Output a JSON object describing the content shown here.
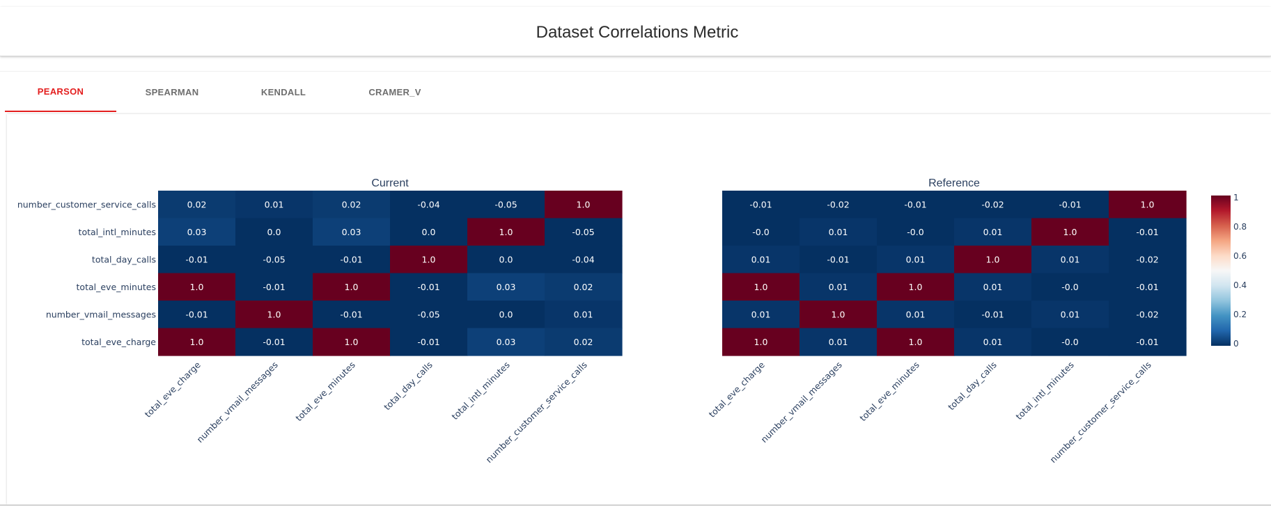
{
  "header": {
    "title": "Dataset Correlations Metric"
  },
  "tabs": [
    {
      "label": "PEARSON",
      "active": true
    },
    {
      "label": "SPEARMAN",
      "active": false
    },
    {
      "label": "KENDALL",
      "active": false
    },
    {
      "label": "CRAMER_V",
      "active": false
    }
  ],
  "chart_data": {
    "type": "heatmap",
    "x_labels": [
      "total_eve_charge",
      "number_vmail_messages",
      "total_eve_minutes",
      "total_day_calls",
      "total_intl_minutes",
      "number_customer_service_calls"
    ],
    "y_labels": [
      "number_customer_service_calls",
      "total_intl_minutes",
      "total_day_calls",
      "total_eve_minutes",
      "number_vmail_messages",
      "total_eve_charge"
    ],
    "colorscale": {
      "min": 0,
      "max": 1,
      "low_color": "#053061",
      "mid_color": "#f7f7f7",
      "high_color": "#67001f"
    },
    "colorbar_ticks": [
      "0",
      "0.2",
      "0.4",
      "0.6",
      "0.8",
      "1"
    ],
    "panels": [
      {
        "title": "Current",
        "values": [
          [
            0.02,
            0.01,
            0.02,
            -0.04,
            -0.05,
            1.0
          ],
          [
            0.03,
            0.0,
            0.03,
            0.0,
            1.0,
            -0.05
          ],
          [
            -0.01,
            -0.05,
            -0.01,
            1.0,
            0.0,
            -0.04
          ],
          [
            1.0,
            -0.01,
            1.0,
            -0.01,
            0.03,
            0.02
          ],
          [
            -0.01,
            1.0,
            -0.01,
            -0.05,
            0.0,
            0.01
          ],
          [
            1.0,
            -0.01,
            1.0,
            -0.01,
            0.03,
            0.02
          ]
        ],
        "text": [
          [
            "0.02",
            "0.01",
            "0.02",
            "-0.04",
            "-0.05",
            "1.0"
          ],
          [
            "0.03",
            "0.0",
            "0.03",
            "0.0",
            "1.0",
            "-0.05"
          ],
          [
            "-0.01",
            "-0.05",
            "-0.01",
            "1.0",
            "0.0",
            "-0.04"
          ],
          [
            "1.0",
            "-0.01",
            "1.0",
            "-0.01",
            "0.03",
            "0.02"
          ],
          [
            "-0.01",
            "1.0",
            "-0.01",
            "-0.05",
            "0.0",
            "0.01"
          ],
          [
            "1.0",
            "-0.01",
            "1.0",
            "-0.01",
            "0.03",
            "0.02"
          ]
        ]
      },
      {
        "title": "Reference",
        "values": [
          [
            -0.01,
            -0.02,
            -0.01,
            -0.02,
            -0.01,
            1.0
          ],
          [
            -0.0,
            0.01,
            -0.0,
            0.01,
            1.0,
            -0.01
          ],
          [
            0.01,
            -0.01,
            0.01,
            1.0,
            0.01,
            -0.02
          ],
          [
            1.0,
            0.01,
            1.0,
            0.01,
            -0.0,
            -0.01
          ],
          [
            0.01,
            1.0,
            0.01,
            -0.01,
            0.01,
            -0.02
          ],
          [
            1.0,
            0.01,
            1.0,
            0.01,
            -0.0,
            -0.01
          ]
        ],
        "text": [
          [
            "-0.01",
            "-0.02",
            "-0.01",
            "-0.02",
            "-0.01",
            "1.0"
          ],
          [
            "-0.0",
            "0.01",
            "-0.0",
            "0.01",
            "1.0",
            "-0.01"
          ],
          [
            "0.01",
            "-0.01",
            "0.01",
            "1.0",
            "0.01",
            "-0.02"
          ],
          [
            "1.0",
            "0.01",
            "1.0",
            "0.01",
            "-0.0",
            "-0.01"
          ],
          [
            "0.01",
            "1.0",
            "0.01",
            "-0.01",
            "0.01",
            "-0.02"
          ],
          [
            "1.0",
            "0.01",
            "1.0",
            "0.01",
            "-0.0",
            "-0.01"
          ]
        ]
      }
    ]
  }
}
